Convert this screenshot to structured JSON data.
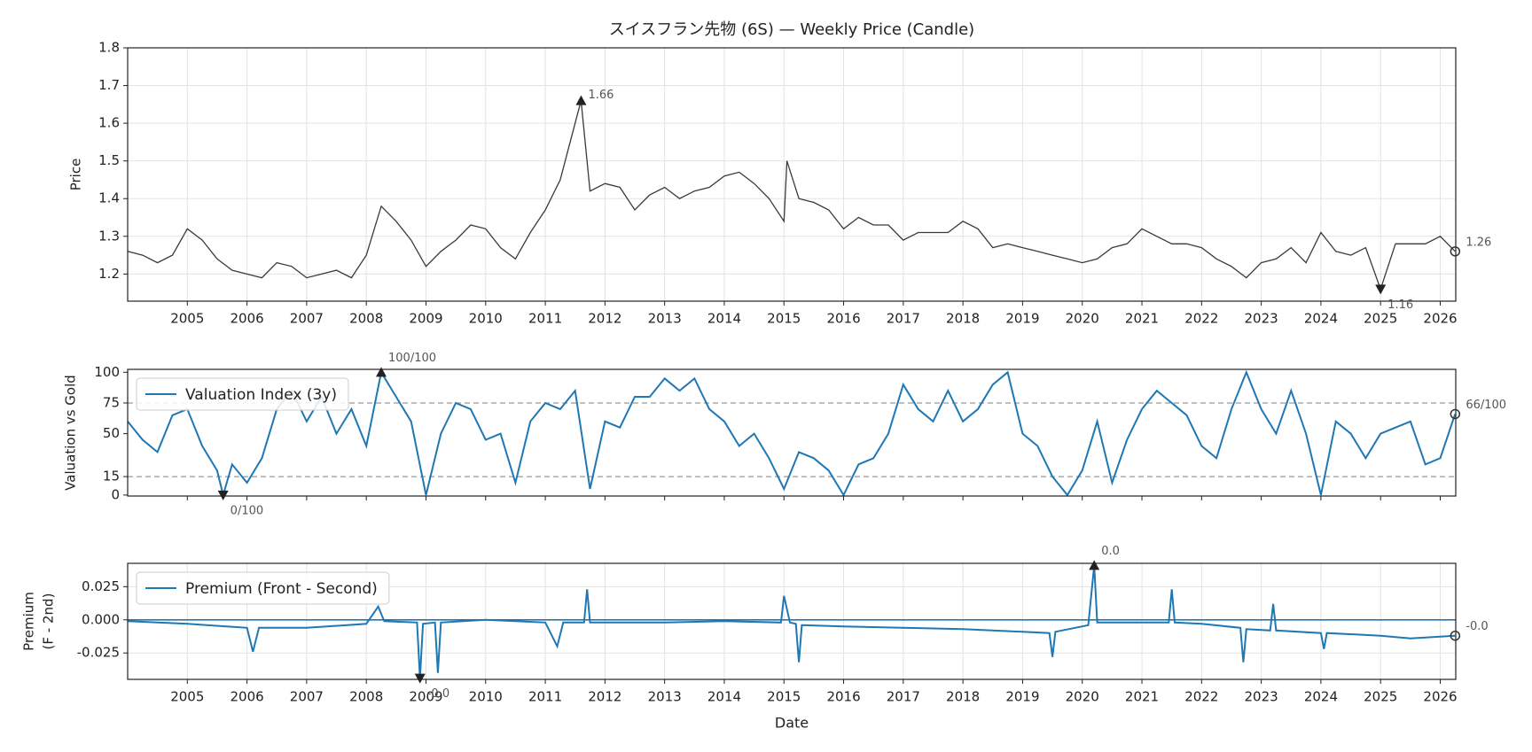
{
  "chart_data": [
    {
      "type": "line",
      "title": "スイスフラン先物 (6S) — Weekly Price (Candle)",
      "ylabel": "Price",
      "xlim": [
        2004.0,
        2026.26
      ],
      "xticks": [
        2005,
        2006,
        2007,
        2008,
        2009,
        2010,
        2011,
        2012,
        2013,
        2014,
        2015,
        2016,
        2017,
        2018,
        2019,
        2020,
        2021,
        2022,
        2023,
        2024,
        2025,
        2026
      ],
      "ylim": [
        1.128,
        1.8
      ],
      "yticks": [
        1.2,
        1.3,
        1.4,
        1.5,
        1.6,
        1.7,
        1.8
      ],
      "grid": true,
      "x": [
        2004.0,
        2004.25,
        2004.5,
        2004.75,
        2005.0,
        2005.25,
        2005.5,
        2005.75,
        2006.0,
        2006.25,
        2006.5,
        2006.75,
        2007.0,
        2007.25,
        2007.5,
        2007.75,
        2008.0,
        2008.25,
        2008.5,
        2008.75,
        2009.0,
        2009.25,
        2009.5,
        2009.75,
        2010.0,
        2010.25,
        2010.5,
        2010.75,
        2011.0,
        2011.25,
        2011.5,
        2011.6,
        2011.75,
        2012.0,
        2012.25,
        2012.5,
        2012.75,
        2013.0,
        2013.25,
        2013.5,
        2013.75,
        2014.0,
        2014.25,
        2014.5,
        2014.75,
        2015.0,
        2015.05,
        2015.25,
        2015.5,
        2015.75,
        2016.0,
        2016.25,
        2016.5,
        2016.75,
        2017.0,
        2017.25,
        2017.5,
        2017.75,
        2018.0,
        2018.25,
        2018.5,
        2018.75,
        2019.0,
        2019.25,
        2019.5,
        2019.75,
        2020.0,
        2020.25,
        2020.5,
        2020.75,
        2021.0,
        2021.25,
        2021.5,
        2021.75,
        2022.0,
        2022.25,
        2022.5,
        2022.75,
        2023.0,
        2023.25,
        2023.5,
        2023.75,
        2024.0,
        2024.25,
        2024.5,
        2024.75,
        2025.0,
        2025.25,
        2025.5,
        2025.75,
        2026.0,
        2026.25
      ],
      "series": [
        {
          "name": "Price",
          "color": "#3a3a3a",
          "values": [
            1.26,
            1.25,
            1.23,
            1.25,
            1.32,
            1.29,
            1.24,
            1.21,
            1.2,
            1.19,
            1.23,
            1.22,
            1.19,
            1.2,
            1.21,
            1.19,
            1.25,
            1.38,
            1.34,
            1.29,
            1.22,
            1.26,
            1.29,
            1.33,
            1.32,
            1.27,
            1.24,
            1.31,
            1.37,
            1.45,
            1.6,
            1.66,
            1.42,
            1.44,
            1.43,
            1.37,
            1.41,
            1.43,
            1.4,
            1.42,
            1.43,
            1.46,
            1.47,
            1.44,
            1.4,
            1.34,
            1.5,
            1.4,
            1.39,
            1.37,
            1.32,
            1.35,
            1.33,
            1.33,
            1.29,
            1.31,
            1.31,
            1.31,
            1.34,
            1.32,
            1.27,
            1.28,
            1.27,
            1.26,
            1.25,
            1.24,
            1.23,
            1.24,
            1.27,
            1.28,
            1.32,
            1.3,
            1.28,
            1.28,
            1.27,
            1.24,
            1.22,
            1.19,
            1.23,
            1.24,
            1.27,
            1.23,
            1.31,
            1.26,
            1.25,
            1.27,
            1.16,
            1.28,
            1.28,
            1.28,
            1.3,
            1.26
          ]
        }
      ],
      "annotations": [
        {
          "text": "1.66",
          "x": 2011.6,
          "y": 1.66,
          "marker": "^"
        },
        {
          "text": "1.16",
          "x": 2025.0,
          "y": 1.16,
          "marker": "v"
        },
        {
          "text": "1.26",
          "x": 2026.25,
          "y": 1.26,
          "marker": "o"
        }
      ]
    },
    {
      "type": "line",
      "ylabel": "Valuation vs Gold",
      "legend": "upper left",
      "xtick_labels": false,
      "xlim": [
        2004.0,
        2026.26
      ],
      "xticks": [
        2005,
        2006,
        2007,
        2008,
        2009,
        2010,
        2011,
        2012,
        2013,
        2014,
        2015,
        2016,
        2017,
        2018,
        2019,
        2020,
        2021,
        2022,
        2023,
        2024,
        2025,
        2026
      ],
      "ylim": [
        -0.8,
        102.4
      ],
      "yticks": [
        0,
        15,
        50,
        75,
        100
      ],
      "grid": false,
      "hlines": [
        75,
        15
      ],
      "hline_style": "dashed",
      "x": [
        2004.0,
        2004.25,
        2004.5,
        2004.75,
        2005.0,
        2005.25,
        2005.5,
        2005.6,
        2005.75,
        2006.0,
        2006.25,
        2006.5,
        2006.75,
        2007.0,
        2007.25,
        2007.5,
        2007.75,
        2008.0,
        2008.25,
        2008.5,
        2008.75,
        2009.0,
        2009.25,
        2009.5,
        2009.75,
        2010.0,
        2010.25,
        2010.5,
        2010.75,
        2011.0,
        2011.25,
        2011.5,
        2011.75,
        2012.0,
        2012.25,
        2012.5,
        2012.75,
        2013.0,
        2013.25,
        2013.5,
        2013.75,
        2014.0,
        2014.25,
        2014.5,
        2014.75,
        2015.0,
        2015.25,
        2015.5,
        2015.75,
        2016.0,
        2016.25,
        2016.5,
        2016.75,
        2017.0,
        2017.25,
        2017.5,
        2017.75,
        2018.0,
        2018.25,
        2018.5,
        2018.75,
        2019.0,
        2019.25,
        2019.5,
        2019.75,
        2020.0,
        2020.25,
        2020.5,
        2020.75,
        2021.0,
        2021.25,
        2021.5,
        2021.75,
        2022.0,
        2022.25,
        2022.5,
        2022.75,
        2023.0,
        2023.25,
        2023.5,
        2023.75,
        2024.0,
        2024.25,
        2024.5,
        2024.75,
        2025.0,
        2025.25,
        2025.5,
        2025.75,
        2026.0,
        2026.25
      ],
      "series": [
        {
          "name": "Valuation Index (3y)",
          "color": "#1f77b4",
          "values": [
            60,
            45,
            35,
            65,
            70,
            40,
            20,
            0,
            25,
            10,
            30,
            70,
            85,
            60,
            80,
            50,
            70,
            40,
            100,
            80,
            60,
            0,
            50,
            75,
            70,
            45,
            50,
            10,
            60,
            75,
            70,
            85,
            5,
            60,
            55,
            80,
            80,
            95,
            85,
            95,
            70,
            60,
            40,
            50,
            30,
            5,
            35,
            30,
            20,
            0,
            25,
            30,
            50,
            90,
            70,
            60,
            85,
            60,
            70,
            90,
            100,
            50,
            40,
            15,
            0,
            20,
            60,
            10,
            45,
            70,
            85,
            75,
            65,
            40,
            30,
            70,
            100,
            70,
            50,
            85,
            50,
            0,
            60,
            50,
            30,
            50,
            55,
            60,
            25,
            30,
            66
          ]
        }
      ],
      "annotations": [
        {
          "text": "100/100",
          "x": 2008.25,
          "y": 100,
          "marker": "^"
        },
        {
          "text": "0/100",
          "x": 2005.6,
          "y": 0,
          "marker": "v"
        },
        {
          "text": "66/100",
          "x": 2026.25,
          "y": 66,
          "marker": "o"
        }
      ]
    },
    {
      "type": "line",
      "ylabel": [
        "Premium",
        "(F - 2nd)"
      ],
      "xlabel": "Date",
      "legend": "upper left",
      "xlim": [
        2004.0,
        2026.26
      ],
      "xticks": [
        2005,
        2006,
        2007,
        2008,
        2009,
        2010,
        2011,
        2012,
        2013,
        2014,
        2015,
        2016,
        2017,
        2018,
        2019,
        2020,
        2021,
        2022,
        2023,
        2024,
        2025,
        2026
      ],
      "ylim": [
        -0.0449,
        0.0426
      ],
      "yticks": [
        -0.025,
        {
          "value": 0,
          "label": "0.000"
        },
        0.025
      ],
      "grid": true,
      "hlines": [
        0
      ],
      "hline_style": "solid",
      "x": [
        2004.0,
        2005.0,
        2006.0,
        2006.1,
        2006.2,
        2007.0,
        2008.0,
        2008.2,
        2008.3,
        2008.85,
        2008.9,
        2008.95,
        2009.15,
        2009.2,
        2009.25,
        2010.0,
        2011.0,
        2011.2,
        2011.3,
        2011.65,
        2011.7,
        2011.75,
        2013.0,
        2014.0,
        2014.95,
        2015.0,
        2015.1,
        2015.2,
        2015.25,
        2015.3,
        2016.0,
        2017.0,
        2018.0,
        2019.0,
        2019.45,
        2019.5,
        2019.55,
        2020.1,
        2020.2,
        2020.25,
        2021.0,
        2021.45,
        2021.5,
        2021.55,
        2022.0,
        2022.65,
        2022.7,
        2022.75,
        2023.15,
        2023.2,
        2023.25,
        2024.0,
        2024.05,
        2024.1,
        2025.0,
        2025.5,
        2026.25
      ],
      "series": [
        {
          "name": "Premium (Front - Second)",
          "color": "#1f77b4",
          "values": [
            -0.001,
            -0.003,
            -0.006,
            -0.024,
            -0.006,
            -0.006,
            -0.003,
            0.01,
            -0.001,
            -0.002,
            -0.044,
            -0.003,
            -0.002,
            -0.04,
            -0.002,
            0.0,
            -0.002,
            -0.02,
            -0.002,
            -0.002,
            0.023,
            -0.002,
            -0.002,
            -0.001,
            -0.002,
            0.018,
            -0.002,
            -0.003,
            -0.032,
            -0.004,
            -0.005,
            -0.006,
            -0.007,
            -0.009,
            -0.01,
            -0.028,
            -0.009,
            -0.004,
            0.041,
            -0.002,
            -0.002,
            -0.002,
            0.023,
            -0.002,
            -0.003,
            -0.006,
            -0.032,
            -0.007,
            -0.008,
            0.012,
            -0.008,
            -0.01,
            -0.022,
            -0.01,
            -0.012,
            -0.014,
            -0.012
          ]
        }
      ],
      "annotations": [
        {
          "text": "0.0",
          "x": 2020.2,
          "y": 0.041,
          "marker": "^"
        },
        {
          "text": "-0.0",
          "x": 2008.9,
          "y": -0.044,
          "marker": "v"
        },
        {
          "text": "-0.0",
          "x": 2026.25,
          "y": -0.012,
          "marker": "o"
        }
      ]
    }
  ]
}
